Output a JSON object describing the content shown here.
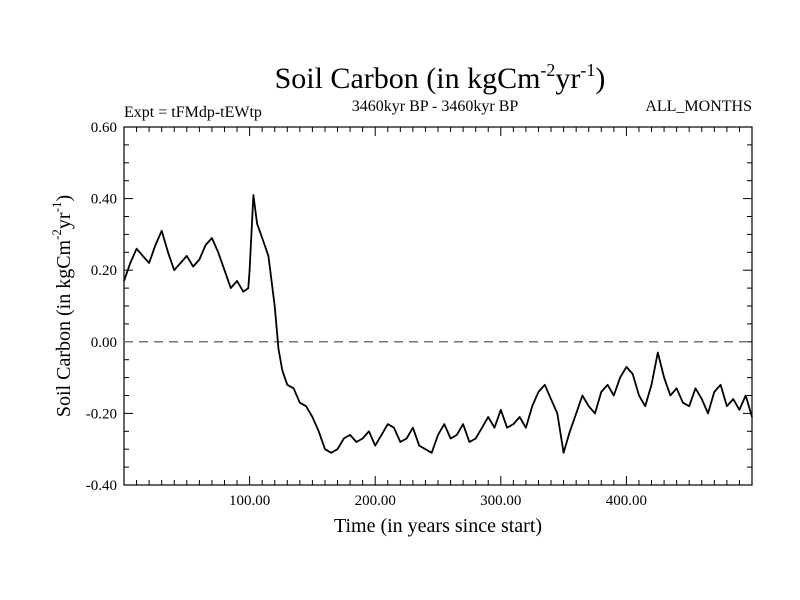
{
  "chart_data": {
    "type": "line",
    "title": "Soil Carbon (in kgCm",
    "title_sup1": "-2",
    "title_mid": "yr",
    "title_sup2": "-1",
    "title_end": ")",
    "subtitle_left": "Expt = tFMdp-tEWtp",
    "subtitle_center": "3460kyr BP - 3460kyr BP",
    "subtitle_right": "ALL_MONTHS",
    "xlabel": "Time (in years since start)",
    "ylabel": "Soil Carbon (in kgCm",
    "ylabel_sup1": "-2",
    "ylabel_mid": "yr",
    "ylabel_sup2": "-1",
    "ylabel_end": ")",
    "xlim": [
      0,
      500
    ],
    "ylim": [
      -0.4,
      0.6
    ],
    "xticks": [
      100,
      200,
      300,
      400
    ],
    "xtick_labels": [
      "100.00",
      "200.00",
      "300.00",
      "400.00"
    ],
    "yticks": [
      -0.4,
      -0.2,
      0.0,
      0.2,
      0.4,
      0.6
    ],
    "ytick_labels": [
      "-0.40",
      "-0.20",
      "0.00",
      "0.20",
      "0.40",
      "0.60"
    ],
    "reference_line": {
      "y": 0.0,
      "style": "dashed",
      "color": "#777777"
    },
    "series": [
      {
        "name": "Soil Carbon",
        "color": "#000000",
        "x": [
          0,
          5,
          10,
          15,
          20,
          25,
          30,
          35,
          40,
          45,
          50,
          55,
          60,
          65,
          70,
          75,
          80,
          85,
          90,
          95,
          99,
          100,
          103,
          106,
          110,
          115,
          120,
          123,
          126,
          130,
          135,
          140,
          145,
          150,
          155,
          160,
          165,
          170,
          175,
          180,
          185,
          190,
          195,
          200,
          205,
          210,
          215,
          220,
          225,
          230,
          235,
          240,
          245,
          250,
          255,
          260,
          265,
          270,
          275,
          280,
          285,
          290,
          295,
          300,
          305,
          310,
          315,
          320,
          325,
          330,
          335,
          340,
          345,
          350,
          355,
          360,
          365,
          370,
          375,
          380,
          385,
          390,
          395,
          400,
          405,
          410,
          415,
          420,
          425,
          430,
          435,
          440,
          445,
          450,
          455,
          460,
          465,
          470,
          475,
          480,
          485,
          490,
          495,
          500
        ],
        "y": [
          0.17,
          0.22,
          0.26,
          0.24,
          0.22,
          0.27,
          0.31,
          0.25,
          0.2,
          0.22,
          0.24,
          0.21,
          0.23,
          0.27,
          0.29,
          0.25,
          0.2,
          0.15,
          0.17,
          0.14,
          0.15,
          0.2,
          0.41,
          0.33,
          0.29,
          0.24,
          0.1,
          -0.02,
          -0.08,
          -0.12,
          -0.13,
          -0.17,
          -0.18,
          -0.21,
          -0.25,
          -0.3,
          -0.31,
          -0.3,
          -0.27,
          -0.26,
          -0.28,
          -0.27,
          -0.25,
          -0.29,
          -0.26,
          -0.23,
          -0.24,
          -0.28,
          -0.27,
          -0.24,
          -0.29,
          -0.3,
          -0.31,
          -0.26,
          -0.23,
          -0.27,
          -0.26,
          -0.23,
          -0.28,
          -0.27,
          -0.24,
          -0.21,
          -0.24,
          -0.19,
          -0.24,
          -0.23,
          -0.21,
          -0.24,
          -0.18,
          -0.14,
          -0.12,
          -0.16,
          -0.2,
          -0.31,
          -0.25,
          -0.2,
          -0.15,
          -0.18,
          -0.2,
          -0.14,
          -0.12,
          -0.15,
          -0.1,
          -0.07,
          -0.09,
          -0.15,
          -0.18,
          -0.12,
          -0.03,
          -0.1,
          -0.15,
          -0.13,
          -0.17,
          -0.18,
          -0.13,
          -0.16,
          -0.2,
          -0.14,
          -0.12,
          -0.18,
          -0.16,
          -0.19,
          -0.15,
          -0.21
        ]
      }
    ]
  }
}
